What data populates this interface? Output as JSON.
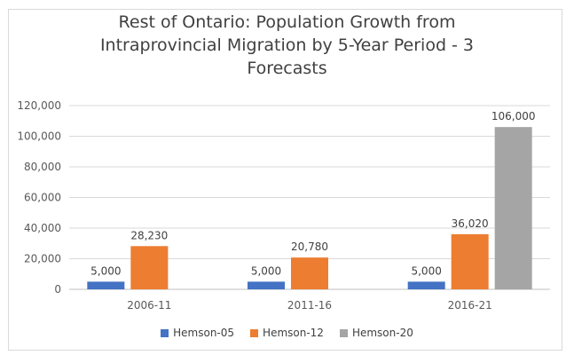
{
  "chart_data": {
    "type": "bar",
    "title_lines": [
      "Rest of Ontario: Population Growth from",
      "Intraprovincial Migration by 5-Year Period - 3",
      "Forecasts"
    ],
    "categories": [
      "2006-11",
      "2011-16",
      "2016-21"
    ],
    "series": [
      {
        "name": "Hemson-05",
        "color": "#4472c4",
        "values": [
          5000,
          5000,
          5000
        ],
        "labels": [
          "5,000",
          "5,000",
          "5,000"
        ]
      },
      {
        "name": "Hemson-12",
        "color": "#ed7d31",
        "values": [
          28230,
          20780,
          36020
        ],
        "labels": [
          "28,230",
          "20,780",
          "36,020"
        ]
      },
      {
        "name": "Hemson-20",
        "color": "#a5a5a5",
        "values": [
          null,
          null,
          106000
        ],
        "labels": [
          "",
          "",
          "106,000"
        ]
      }
    ],
    "yticks": [
      0,
      20000,
      40000,
      60000,
      80000,
      100000,
      120000
    ],
    "ytick_labels": [
      "0",
      "20,000",
      "40,000",
      "60,000",
      "80,000",
      "100,000",
      "120,000"
    ],
    "ylim": [
      0,
      120000
    ],
    "grid": true,
    "legend_position": "bottom"
  }
}
